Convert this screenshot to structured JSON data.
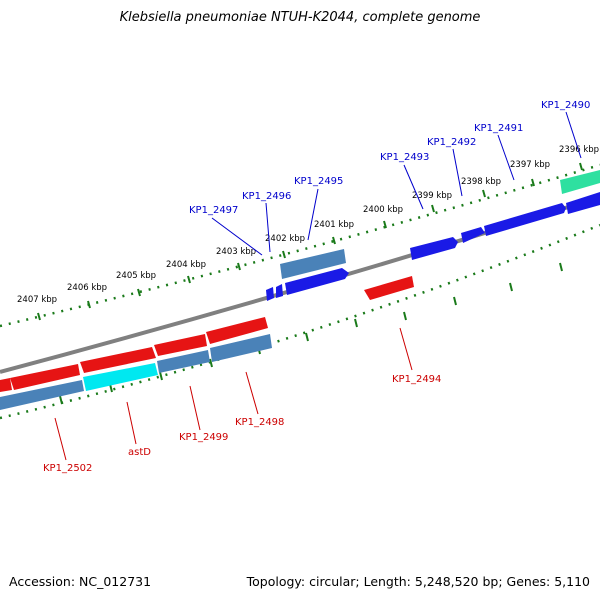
{
  "title": "Klebsiella pneumoniae NTUH-K2044, complete genome",
  "accession_text": "Accession: NC_012731",
  "summary_text": "Topology: circular; Length: 5,248,520 bp; Genes: 5,110",
  "colors": {
    "forward_gene": "#1a1ae6",
    "reverse_gene": "#e61414",
    "cds_block": "#4a82b8",
    "highlight_forward": "#2ee0a0",
    "highlight_reverse": "#00e8f0",
    "backbone": "#808080",
    "tick": "#1a7a1a",
    "forward_label": "#0000cc",
    "reverse_label": "#cc0000"
  },
  "scale_labels": [
    "2396 kbp",
    "2397 kbp",
    "2398 kbp",
    "2399 kbp",
    "2400 kbp",
    "2401 kbp",
    "2402 kbp",
    "2403 kbp",
    "2404 kbp",
    "2405 kbp",
    "2406 kbp",
    "2407 kbp"
  ],
  "forward_genes": [
    "KP1_2490",
    "KP1_2491",
    "KP1_2492",
    "KP1_2493",
    "KP1_2495",
    "KP1_2496",
    "KP1_2497"
  ],
  "reverse_genes": [
    "KP1_2494",
    "KP1_2498",
    "KP1_2499",
    "astD",
    "KP1_2502"
  ]
}
